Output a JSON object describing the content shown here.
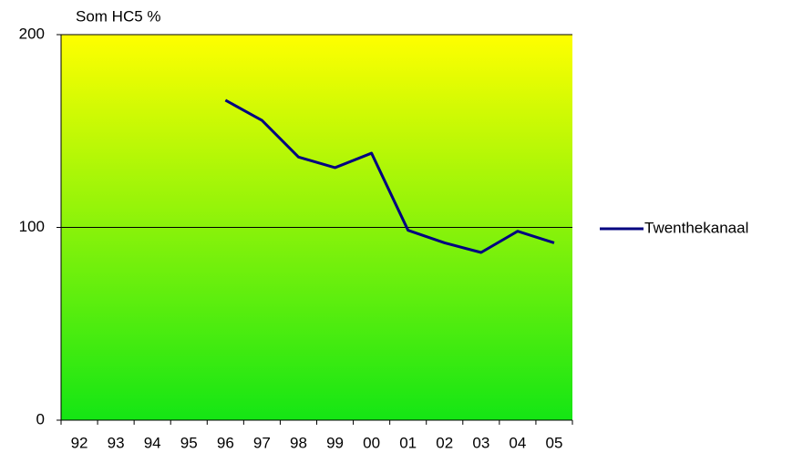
{
  "chart_data": {
    "type": "line",
    "y_axis_label": "Som HC5 %",
    "categories": [
      "92",
      "93",
      "94",
      "95",
      "96",
      "97",
      "98",
      "99",
      "00",
      "01",
      "02",
      "03",
      "04",
      "05"
    ],
    "series": [
      {
        "name": "Twenthekanaal",
        "color": "#000080",
        "values": [
          null,
          null,
          null,
          null,
          166,
          155.5,
          136.5,
          131,
          138.5,
          98.5,
          92,
          87,
          98,
          92
        ]
      }
    ],
    "ylim": [
      0,
      200
    ],
    "yticks": [
      0,
      100,
      200
    ],
    "grid": true,
    "legend": "right"
  }
}
